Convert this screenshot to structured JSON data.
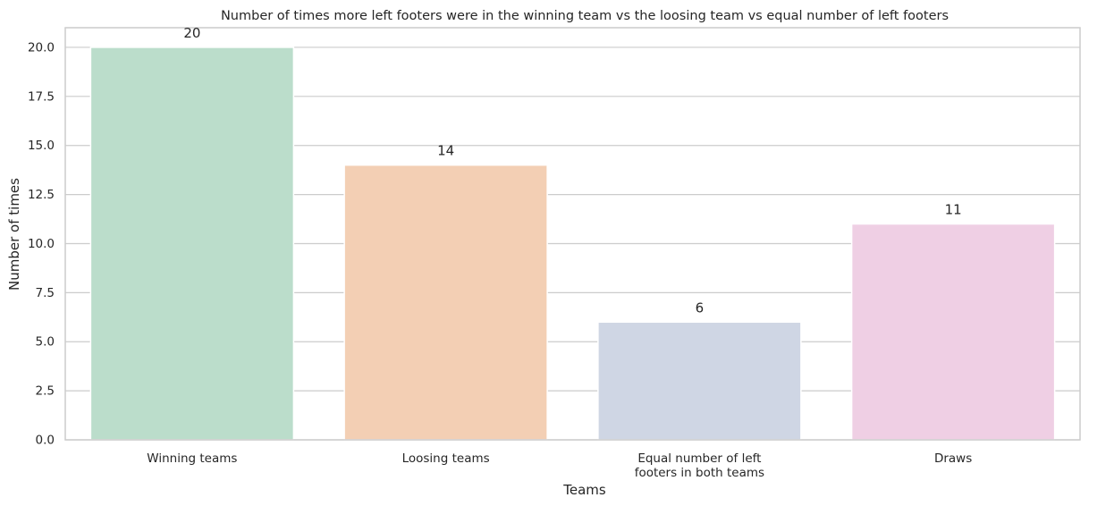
{
  "chart_data": {
    "type": "bar",
    "title": "Number of times more left footers were in the winning team vs the loosing team vs equal number of left footers",
    "xlabel": "Teams",
    "ylabel": "Number of times",
    "categories": [
      [
        "Winning teams"
      ],
      [
        "Loosing teams"
      ],
      [
        "Equal number of left",
        "footers in both teams"
      ],
      [
        "Draws"
      ]
    ],
    "values": [
      20,
      14,
      6,
      11
    ],
    "value_labels": [
      "20",
      "14",
      "6",
      "11"
    ],
    "colors": [
      "#bbddcb",
      "#f3cfb4",
      "#cfd6e4",
      "#efcfe4"
    ],
    "ylim": [
      0,
      21
    ],
    "yticks": [
      0,
      2.5,
      5,
      7.5,
      10,
      12.5,
      15,
      17.5,
      20
    ],
    "ytick_labels": [
      "0.0",
      "2.5",
      "5.0",
      "7.5",
      "10.0",
      "12.5",
      "15.0",
      "17.5",
      "20.0"
    ],
    "grid": "horizontal"
  }
}
